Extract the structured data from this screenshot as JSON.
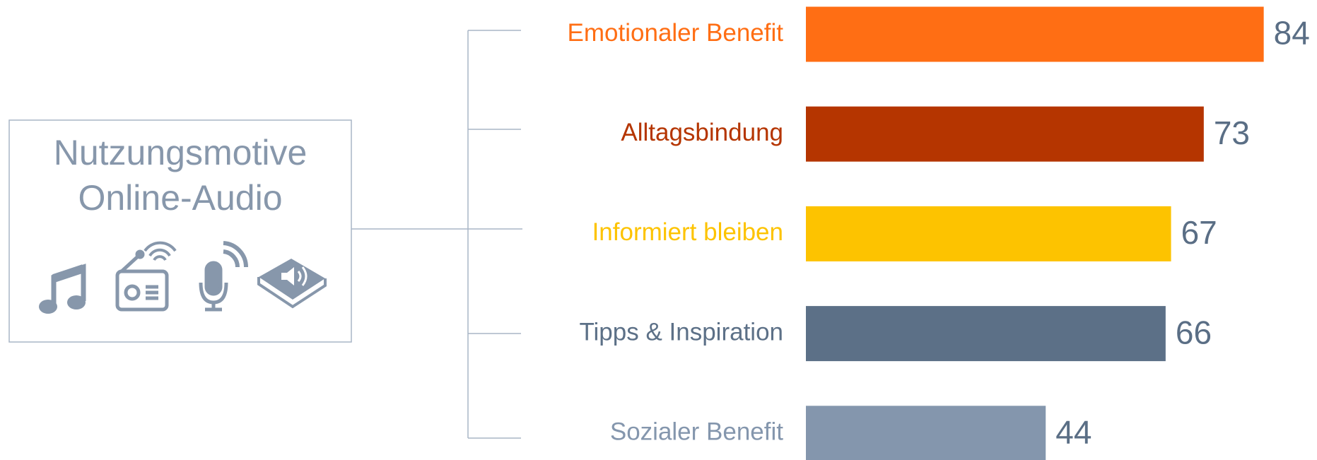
{
  "chart_data": {
    "type": "bar",
    "orientation": "horizontal",
    "title": [
      "Nutzungsmotive",
      "Online-Audio"
    ],
    "categories": [
      "Emotionaler Benefit",
      "Alltagsbindung",
      "Informiert bleiben",
      "Tipps & Inspiration",
      "Sozialer Benefit"
    ],
    "values": [
      84,
      73,
      67,
      66,
      44
    ],
    "colors": [
      "#ff6e14",
      "#b53500",
      "#fdc300",
      "#5c7087",
      "#8496ad"
    ]
  }
}
